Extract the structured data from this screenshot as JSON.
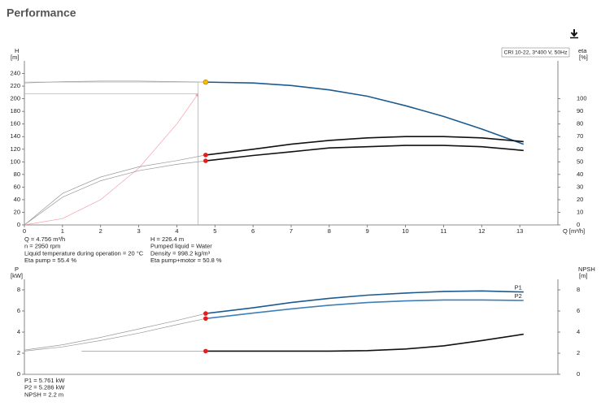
{
  "header": {
    "title": "Performance"
  },
  "chart_data": [
    {
      "type": "line",
      "model_label": "CRI 10-22, 3*400 V, 50Hz",
      "y_label": "H",
      "y_unit": "[m]",
      "y2_label": "eta",
      "y2_unit": "[%]",
      "x_label": "Q [m³/h]",
      "xlim": [
        0,
        14
      ],
      "xticks": [
        0,
        1,
        2,
        3,
        4,
        5,
        6,
        7,
        8,
        9,
        10,
        11,
        12,
        13
      ],
      "ylim": [
        0,
        260
      ],
      "yticks": [
        0,
        20,
        40,
        60,
        80,
        100,
        120,
        140,
        160,
        180,
        200,
        220,
        240
      ],
      "y2lim": [
        0,
        130
      ],
      "y2ticks": [
        0,
        10,
        20,
        30,
        40,
        50,
        60,
        70,
        80,
        90,
        100
      ],
      "grid": false,
      "guides": [
        {
          "x": 4.56,
          "y": 226.4
        },
        {
          "x": 4.56,
          "y": 208
        }
      ],
      "series": [
        {
          "color": "#f2a0ac",
          "style": "thin",
          "arrow": true,
          "x": [
            0,
            1,
            2,
            3,
            4,
            4.56
          ],
          "values": [
            0,
            10,
            40,
            90,
            160,
            208
          ]
        },
        {
          "color": "#999999",
          "style": "thin",
          "x": [
            0,
            1,
            2,
            3,
            4,
            4.756
          ],
          "values": [
            225,
            227,
            228,
            228,
            227,
            226.4
          ]
        },
        {
          "color": "#999999",
          "style": "thin",
          "axis": "y2",
          "x": [
            0,
            1,
            2,
            3,
            4,
            4.756
          ],
          "values": [
            0,
            25,
            38,
            46,
            51,
            55.4
          ]
        },
        {
          "color": "#999999",
          "style": "thin",
          "axis": "y2",
          "x": [
            0,
            1,
            2,
            3,
            4,
            4.756
          ],
          "values": [
            0,
            22,
            35,
            43,
            48,
            50.8
          ]
        },
        {
          "color": "#1d5b8f",
          "x": [
            4.756,
            6,
            7,
            8,
            9,
            10,
            11,
            12,
            13.1
          ],
          "values": [
            226.4,
            225,
            221,
            214,
            204,
            189,
            172,
            152,
            128
          ]
        },
        {
          "color": "#111111",
          "axis": "y2",
          "x": [
            4.756,
            6,
            7,
            8,
            9,
            10,
            11,
            12,
            13.1
          ],
          "values": [
            55.4,
            60,
            64,
            67,
            69,
            70,
            70,
            69,
            66
          ]
        },
        {
          "color": "#111111",
          "axis": "y2",
          "x": [
            4.756,
            6,
            7,
            8,
            9,
            10,
            11,
            12,
            13.1
          ],
          "values": [
            50.8,
            55,
            58,
            61,
            62,
            63,
            63,
            62,
            59
          ]
        }
      ],
      "markers": [
        {
          "x": 4.756,
          "y": 226.4,
          "color": "#f5c000"
        },
        {
          "x": 4.756,
          "y": 55.4,
          "axis": "y2",
          "color": "#e02020"
        },
        {
          "x": 4.756,
          "y": 50.8,
          "axis": "y2",
          "color": "#e02020"
        }
      ],
      "notes": [
        "Q = 4.756 m³/h",
        "n = 2950 rpm",
        "Liquid temperature during operation = 20 °C",
        "Eta pump = 55.4 %",
        "H = 226.4 m",
        "Pumped liquid = Water",
        "Density = 998.2 kg/m³",
        "Eta pump+motor = 50.8 %"
      ]
    },
    {
      "type": "line",
      "y_label": "P",
      "y_unit": "[kW]",
      "y2_label": "NPSH",
      "y2_unit": "[m]",
      "xlim": [
        0,
        14
      ],
      "ylim": [
        0,
        9
      ],
      "yticks": [
        0,
        2,
        4,
        6,
        8
      ],
      "y2lim": [
        0,
        9
      ],
      "y2ticks": [
        0,
        2,
        4,
        6,
        8
      ],
      "grid": false,
      "series": [
        {
          "color": "#999999",
          "style": "thin",
          "x": [
            0,
            1,
            2,
            3,
            4,
            4.756
          ],
          "values": [
            2.3,
            2.8,
            3.5,
            4.3,
            5.1,
            5.761
          ]
        },
        {
          "color": "#999999",
          "style": "thin",
          "x": [
            0,
            1,
            2,
            3,
            4,
            4.756
          ],
          "values": [
            2.2,
            2.6,
            3.2,
            3.9,
            4.7,
            5.286
          ]
        },
        {
          "color": "#999999",
          "style": "thin",
          "axis": "y2",
          "x": [
            1.5,
            4.756
          ],
          "values": [
            2.2,
            2.2
          ]
        },
        {
          "name": "P1",
          "color": "#1d5b8f",
          "x": [
            4.756,
            6,
            7,
            8,
            9,
            10,
            11,
            12,
            13.1
          ],
          "values": [
            5.761,
            6.3,
            6.8,
            7.2,
            7.5,
            7.7,
            7.85,
            7.9,
            7.8
          ]
        },
        {
          "name": "P2",
          "color": "#3f7fb8",
          "x": [
            4.756,
            6,
            7,
            8,
            9,
            10,
            11,
            12,
            13.1
          ],
          "values": [
            5.286,
            5.8,
            6.2,
            6.55,
            6.8,
            6.95,
            7.05,
            7.05,
            7.0
          ]
        },
        {
          "color": "#111111",
          "axis": "y2",
          "x": [
            4.756,
            6,
            7,
            8,
            9,
            10,
            11,
            12,
            13.1
          ],
          "values": [
            2.2,
            2.2,
            2.2,
            2.2,
            2.25,
            2.4,
            2.7,
            3.2,
            3.8
          ]
        }
      ],
      "markers": [
        {
          "x": 4.756,
          "y": 5.761,
          "color": "#e02020"
        },
        {
          "x": 4.756,
          "y": 5.286,
          "color": "#e02020"
        },
        {
          "x": 4.756,
          "y": 2.2,
          "axis": "y2",
          "color": "#e02020"
        }
      ],
      "notes": [
        "P1 = 5.761 kW",
        "P2 = 5.286 kW",
        "NPSH = 2.2 m"
      ]
    }
  ]
}
